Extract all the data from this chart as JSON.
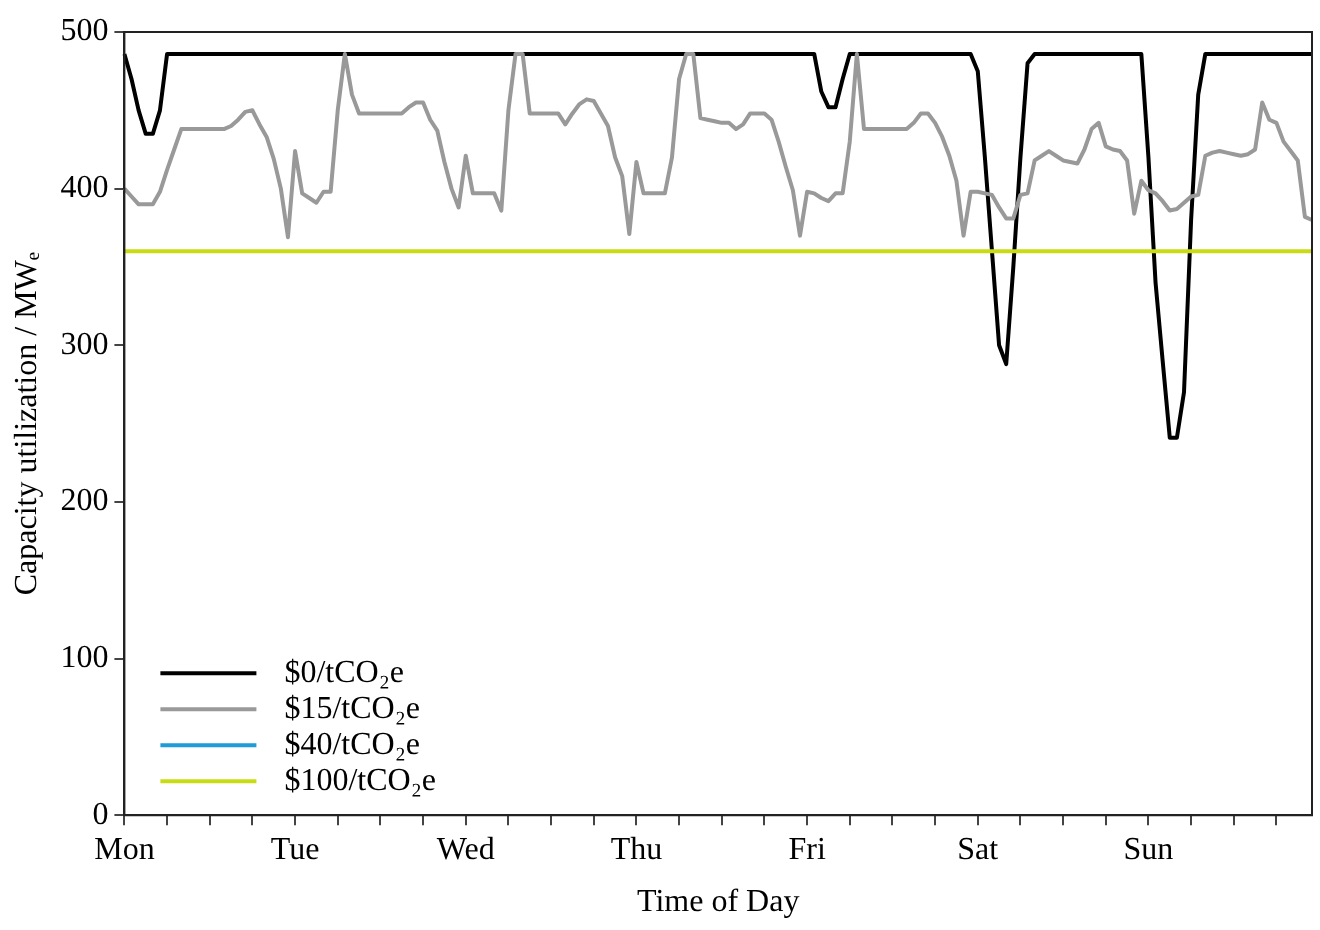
{
  "chart_data": {
    "type": "line",
    "xlabel": "Time of Day",
    "ylabel": "Capacity utilization / MWₑ",
    "ylim": [
      0,
      500
    ],
    "yticks": [
      0,
      100,
      200,
      300,
      400,
      500
    ],
    "categories": [
      "Mon",
      null,
      null,
      null,
      null,
      null,
      null,
      null,
      null,
      null,
      null,
      null,
      null,
      null,
      null,
      null,
      null,
      null,
      null,
      null,
      null,
      null,
      null,
      null,
      "Tue",
      null,
      null,
      null,
      null,
      null,
      null,
      null,
      null,
      null,
      null,
      null,
      null,
      null,
      null,
      null,
      null,
      null,
      null,
      null,
      null,
      null,
      null,
      null,
      "Wed",
      null,
      null,
      null,
      null,
      null,
      null,
      null,
      null,
      null,
      null,
      null,
      null,
      null,
      null,
      null,
      null,
      null,
      null,
      null,
      null,
      null,
      null,
      null,
      "Thu",
      null,
      null,
      null,
      null,
      null,
      null,
      null,
      null,
      null,
      null,
      null,
      null,
      null,
      null,
      null,
      null,
      null,
      null,
      null,
      null,
      null,
      null,
      null,
      "Fri",
      null,
      null,
      null,
      null,
      null,
      null,
      null,
      null,
      null,
      null,
      null,
      null,
      null,
      null,
      null,
      null,
      null,
      null,
      null,
      null,
      null,
      null,
      null,
      "Sat",
      null,
      null,
      null,
      null,
      null,
      null,
      null,
      null,
      null,
      null,
      null,
      null,
      null,
      null,
      null,
      null,
      null,
      null,
      null,
      null,
      null,
      null,
      null,
      "Sun",
      null,
      null,
      null,
      null,
      null,
      null,
      null,
      null,
      null,
      null,
      null,
      null,
      null,
      null,
      null,
      null,
      null,
      null,
      null,
      null,
      null,
      null,
      null
    ],
    "grid": false,
    "legend": "bottom left",
    "marker": "none",
    "line_style": "solid",
    "series": [
      {
        "name": "$0/tCO₂e",
        "color": "#000000",
        "values": [
          486,
          470,
          450,
          435,
          435,
          450,
          486,
          486,
          486,
          486,
          486,
          486,
          486,
          486,
          486,
          486,
          486,
          486,
          486,
          486,
          486,
          486,
          486,
          486,
          486,
          486,
          486,
          486,
          486,
          486,
          486,
          486,
          486,
          486,
          486,
          486,
          486,
          486,
          486,
          486,
          486,
          486,
          486,
          486,
          486,
          486,
          486,
          486,
          486,
          486,
          486,
          486,
          486,
          486,
          486,
          486,
          486,
          486,
          486,
          486,
          486,
          486,
          486,
          486,
          486,
          486,
          486,
          486,
          486,
          486,
          486,
          486,
          486,
          486,
          486,
          486,
          486,
          486,
          486,
          486,
          486,
          486,
          486,
          486,
          486,
          486,
          486,
          486,
          486,
          486,
          486,
          486,
          486,
          486,
          486,
          486,
          486,
          486,
          462,
          452,
          452,
          470,
          486,
          486,
          486,
          486,
          486,
          486,
          486,
          486,
          486,
          486,
          486,
          486,
          486,
          486,
          486,
          486,
          486,
          486,
          475,
          420,
          360,
          300,
          288,
          350,
          420,
          480,
          486,
          486,
          486,
          486,
          486,
          486,
          486,
          486,
          486,
          486,
          486,
          486,
          486,
          486,
          486,
          486,
          420,
          340,
          290,
          241,
          241,
          270,
          380,
          460,
          486,
          486,
          486,
          486,
          486,
          486,
          486,
          486,
          486,
          486,
          486,
          486,
          486,
          486,
          486,
          486
        ]
      },
      {
        "name": "$15/tCO₂e",
        "color": "#999999",
        "values": [
          400,
          395,
          390,
          390,
          390,
          398,
          412,
          425,
          438,
          438,
          438,
          438,
          438,
          438,
          438,
          440,
          444,
          449,
          450,
          441,
          433,
          419,
          400,
          369,
          424,
          397,
          394,
          391,
          398,
          398,
          450,
          486,
          460,
          448,
          448,
          448,
          448,
          448,
          448,
          448,
          452,
          455,
          455,
          444,
          437,
          417,
          400,
          388,
          421,
          397,
          397,
          397,
          397,
          386,
          450,
          486,
          486,
          448,
          448,
          448,
          448,
          448,
          441,
          448,
          454,
          457,
          456,
          448,
          440,
          420,
          408,
          371,
          417,
          397,
          397,
          397,
          397,
          420,
          470,
          486,
          486,
          445,
          444,
          443,
          442,
          442,
          438,
          441,
          448,
          448,
          448,
          444,
          430,
          414,
          399,
          370,
          398,
          397,
          394,
          392,
          397,
          397,
          430,
          486,
          438,
          438,
          438,
          438,
          438,
          438,
          438,
          442,
          448,
          448,
          442,
          433,
          421,
          405,
          370,
          398,
          398,
          397,
          396,
          388,
          381,
          381,
          396,
          397,
          418,
          421,
          424,
          421,
          418,
          417,
          416,
          425,
          438,
          442,
          427,
          425,
          424,
          418,
          384,
          405,
          399,
          397,
          392,
          386,
          387,
          391,
          395,
          396,
          421,
          423,
          424,
          423,
          422,
          421,
          422,
          425,
          455,
          444,
          442,
          430,
          424,
          418,
          382,
          380
        ]
      },
      {
        "name": "$40/tCO₂e",
        "color": "#1f9bd7",
        "values": [
          null,
          null,
          null,
          null,
          null,
          null,
          null,
          null,
          null,
          null,
          null,
          null,
          null,
          null,
          null,
          null,
          null,
          null,
          null,
          null,
          null,
          null,
          null,
          null,
          null,
          null,
          null,
          null,
          null,
          null,
          null,
          null,
          null,
          null,
          null,
          null,
          null,
          null,
          null,
          null,
          null,
          null,
          null,
          null,
          null,
          null,
          null,
          null,
          null,
          null,
          null,
          null,
          null,
          null,
          null,
          null,
          null,
          null,
          null,
          null,
          null,
          null,
          null,
          null,
          null,
          null,
          null,
          null,
          null,
          null,
          null,
          null,
          null,
          null,
          null,
          null,
          null,
          null,
          null,
          null,
          null,
          null,
          null,
          null,
          null,
          null,
          null,
          null,
          null,
          null,
          null,
          null,
          null,
          null,
          null,
          null,
          null,
          null,
          null,
          null,
          null,
          null,
          null,
          null,
          null,
          null,
          null,
          null,
          null,
          null,
          null,
          null,
          null,
          null,
          null,
          null,
          null,
          null,
          null,
          null,
          null,
          null,
          null,
          null,
          null,
          null,
          null,
          null,
          null,
          null,
          null,
          null,
          null,
          null,
          null,
          null,
          null,
          null,
          null,
          null,
          null,
          null,
          null,
          null,
          null,
          null,
          null,
          null,
          null,
          null,
          null,
          null,
          null,
          null,
          null,
          null,
          null,
          null,
          null,
          null,
          null,
          null,
          null,
          null,
          null,
          null,
          null,
          null
        ]
      },
      {
        "name": "$100/tCO₂e",
        "color": "#c8dc14",
        "values": [
          360,
          360,
          360,
          360,
          360,
          360,
          360,
          360,
          360,
          360,
          360,
          360,
          360,
          360,
          360,
          360,
          360,
          360,
          360,
          360,
          360,
          360,
          360,
          360,
          360,
          360,
          360,
          360,
          360,
          360,
          360,
          360,
          360,
          360,
          360,
          360,
          360,
          360,
          360,
          360,
          360,
          360,
          360,
          360,
          360,
          360,
          360,
          360,
          360,
          360,
          360,
          360,
          360,
          360,
          360,
          360,
          360,
          360,
          360,
          360,
          360,
          360,
          360,
          360,
          360,
          360,
          360,
          360,
          360,
          360,
          360,
          360,
          360,
          360,
          360,
          360,
          360,
          360,
          360,
          360,
          360,
          360,
          360,
          360,
          360,
          360,
          360,
          360,
          360,
          360,
          360,
          360,
          360,
          360,
          360,
          360,
          360,
          360,
          360,
          360,
          360,
          360,
          360,
          360,
          360,
          360,
          360,
          360,
          360,
          360,
          360,
          360,
          360,
          360,
          360,
          360,
          360,
          360,
          360,
          360,
          360,
          360,
          360,
          360,
          360,
          360,
          360,
          360,
          360,
          360,
          360,
          360,
          360,
          360,
          360,
          360,
          360,
          360,
          360,
          360,
          360,
          360,
          360,
          360,
          360,
          360,
          360,
          360,
          360,
          360,
          360,
          360,
          360,
          360,
          360,
          360,
          360,
          360,
          360,
          360,
          360,
          360,
          360,
          360,
          360,
          360,
          360,
          360
        ]
      }
    ]
  }
}
